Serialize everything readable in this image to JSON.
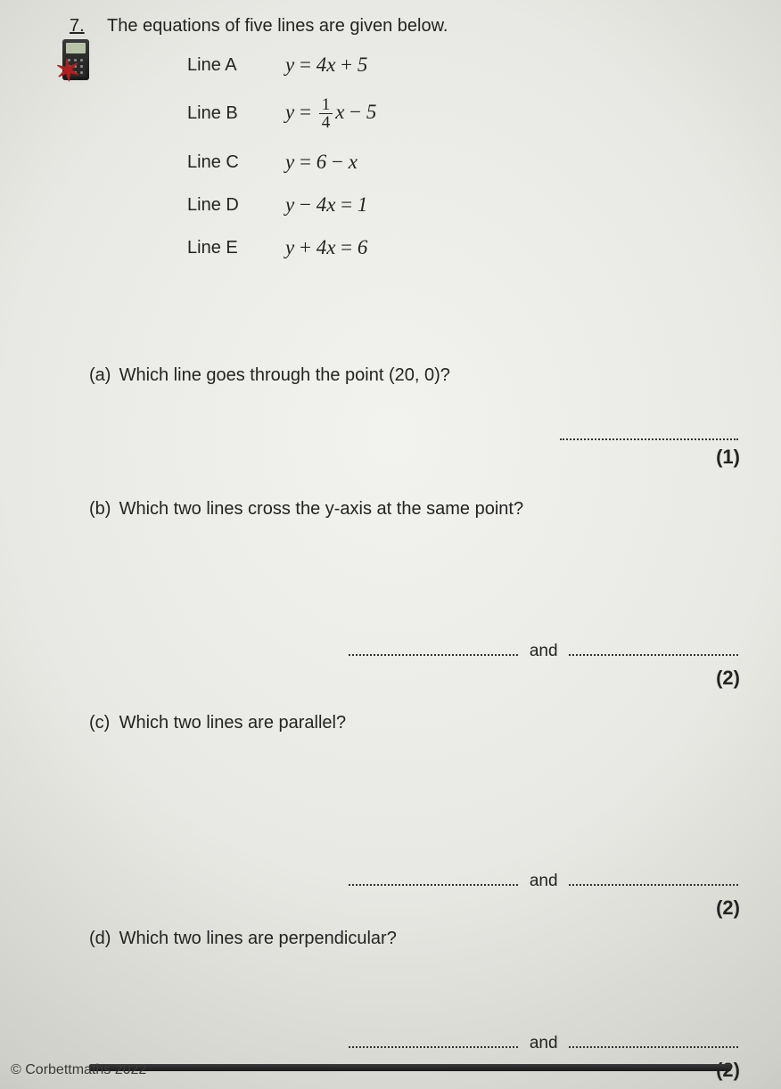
{
  "question_number": "7.",
  "intro": "The equations of five lines are given below.",
  "lines": [
    {
      "label": "Line A",
      "eq_html": "<span class='eq'>y <span class='up'>=</span> 4x <span class='up'>+</span> 5</span>"
    },
    {
      "label": "Line B",
      "eq_html": "<span class='eq'>y <span class='up'>=</span> <span class='frac'><span class='n'>1</span><span class='d'>4</span></span>x <span class='up'>−</span> 5</span>"
    },
    {
      "label": "Line C",
      "eq_html": "<span class='eq'>y <span class='up'>=</span> 6 <span class='up'>−</span> x</span>"
    },
    {
      "label": "Line D",
      "eq_html": "<span class='eq'>y <span class='up'>−</span> 4x <span class='up'>=</span> 1</span>"
    },
    {
      "label": "Line E",
      "eq_html": "<span class='eq'>y <span class='up'>+</span> 4x <span class='up'>=</span> 6</span>"
    }
  ],
  "parts": {
    "a": {
      "label": "(a)",
      "text": "Which line goes through the point (20, 0)?",
      "marks": "(1)"
    },
    "b": {
      "label": "(b)",
      "text": "Which two lines cross the y-axis at the same point?",
      "marks": "(2)"
    },
    "c": {
      "label": "(c)",
      "text": "Which two lines are parallel?",
      "marks": "(2)"
    },
    "d": {
      "label": "(d)",
      "text": "Which two lines are perpendicular?",
      "marks": "(2)"
    }
  },
  "joiner": "and",
  "footer": "© Corbettmaths 2022"
}
